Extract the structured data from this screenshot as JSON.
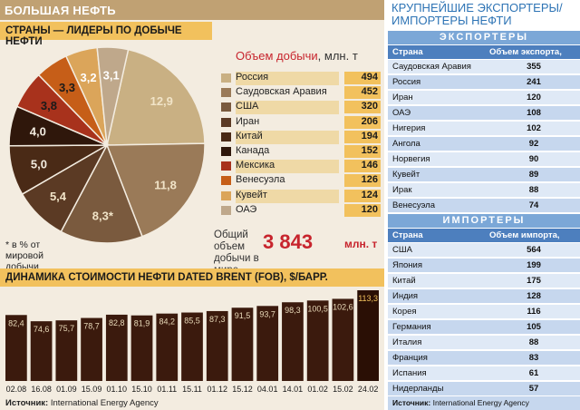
{
  "title": "БОЛЬШАЯ НЕФТЬ",
  "section1_title": "СТРАНЫ — ЛИДЕРЫ ПО ДОБЫЧЕ НЕФТИ",
  "volume_title_main": "Объем добычи",
  "volume_title_unit": ", млн. т",
  "pie_note": "* в % от мировой добычи",
  "total_label": "Общий объем добычи в мире",
  "total_value": "3 843",
  "total_unit": "млн. т",
  "section2_title": "ДИНАМИКА СТОИМОСТИ НЕФТИ DATED BRENT (FOB), $/БАРР.",
  "source_label": "Источник:",
  "source_text": " International Energy Agency",
  "colors": {
    "accent": "#f2c15d",
    "header": "#c0a173",
    "red": "#c7242d",
    "bar": "#3b1a0d",
    "blue_band": "#7ba7d7",
    "blue_head": "#4d7fbe"
  },
  "chart_data": [
    {
      "type": "pie",
      "title": "СТРАНЫ — ЛИДЕРЫ ПО ДОБЫЧЕ НЕФТИ",
      "unit": "% от мировой добычи",
      "slices": [
        {
          "label": "Россия",
          "value": 12.9,
          "display": "12,9",
          "color": "#c9b083",
          "volume": 494
        },
        {
          "label": "Саудовская Аравия",
          "value": 11.8,
          "display": "11,8",
          "color": "#9a7a58",
          "volume": 452
        },
        {
          "label": "США",
          "value": 8.3,
          "display": "8,3*",
          "color": "#7a5a3e",
          "volume": 320
        },
        {
          "label": "Иран",
          "value": 5.4,
          "display": "5,4",
          "color": "#5b3a24",
          "volume": 206
        },
        {
          "label": "Китай",
          "value": 5.0,
          "display": "5,0",
          "color": "#4a2a16",
          "volume": 194
        },
        {
          "label": "Канада",
          "value": 4.0,
          "display": "4,0",
          "color": "#2f170b",
          "volume": 152
        },
        {
          "label": "Мексика",
          "value": 3.8,
          "display": "3,8",
          "color": "#a8321c",
          "volume": 146
        },
        {
          "label": "Венесуэла",
          "value": 3.3,
          "display": "3,3",
          "color": "#c65e18",
          "volume": 126
        },
        {
          "label": "Кувейт",
          "value": 3.2,
          "display": "3,2",
          "color": "#dba55a",
          "volume": 124
        },
        {
          "label": "ОАЭ",
          "value": 3.1,
          "display": "3,1",
          "color": "#bfa88b",
          "volume": 120
        }
      ]
    },
    {
      "type": "bar",
      "title": "ДИНАМИКА СТОИМОСТИ НЕФТИ DATED BRENT (FOB), $/БАРР.",
      "categories": [
        "02.08",
        "16.08",
        "01.09",
        "15.09",
        "01.10",
        "15.10",
        "01.11",
        "15.11",
        "01.12",
        "15.12",
        "04.01",
        "14.01",
        "01.02",
        "15.02",
        "24.02"
      ],
      "values": [
        82.4,
        74.6,
        75.7,
        78.7,
        82.8,
        81.9,
        84.2,
        85.5,
        87.3,
        91.5,
        93.7,
        98.3,
        100.5,
        102.6,
        113.3
      ],
      "labels": [
        "82,4",
        "74,6",
        "75,7",
        "78,7",
        "82,8",
        "81,9",
        "84,2",
        "85,5",
        "87,3",
        "91,5",
        "93,7",
        "98,3",
        "100,5",
        "102,6",
        "113,3"
      ],
      "highlight_last": true
    }
  ],
  "right": {
    "title": "КРУПНЕЙШИЕ ЭКСПОРТЕРЫ/ ИМПОРТЕРЫ НЕФТИ",
    "exporters_band": "ЭКСПОРТЕРЫ",
    "exporters_head": {
      "country": "Страна",
      "value": "Объем экспорта, млн. т"
    },
    "exporters": [
      {
        "country": "Саудовская Аравия",
        "value": "355"
      },
      {
        "country": "Россия",
        "value": "241"
      },
      {
        "country": "Иран",
        "value": "120"
      },
      {
        "country": "ОАЭ",
        "value": "108"
      },
      {
        "country": "Нигерия",
        "value": "102"
      },
      {
        "country": "Ангола",
        "value": "92"
      },
      {
        "country": "Норвегия",
        "value": "90"
      },
      {
        "country": "Кувейт",
        "value": "89"
      },
      {
        "country": "Ирак",
        "value": "88"
      },
      {
        "country": "Венесуэла",
        "value": "74"
      }
    ],
    "importers_band": "ИМПОРТЕРЫ",
    "importers_head": {
      "country": "Страна",
      "value": "Объем импорта, млн. т"
    },
    "importers": [
      {
        "country": "США",
        "value": "564"
      },
      {
        "country": "Япония",
        "value": "199"
      },
      {
        "country": "Китай",
        "value": "175"
      },
      {
        "country": "Индия",
        "value": "128"
      },
      {
        "country": "Корея",
        "value": "116"
      },
      {
        "country": "Германия",
        "value": "105"
      },
      {
        "country": "Италия",
        "value": "88"
      },
      {
        "country": "Франция",
        "value": "83"
      },
      {
        "country": "Испания",
        "value": "61"
      },
      {
        "country": "Нидерланды",
        "value": "57"
      }
    ],
    "source_label": "Источник:",
    "source_text": " International Energy Agency"
  }
}
